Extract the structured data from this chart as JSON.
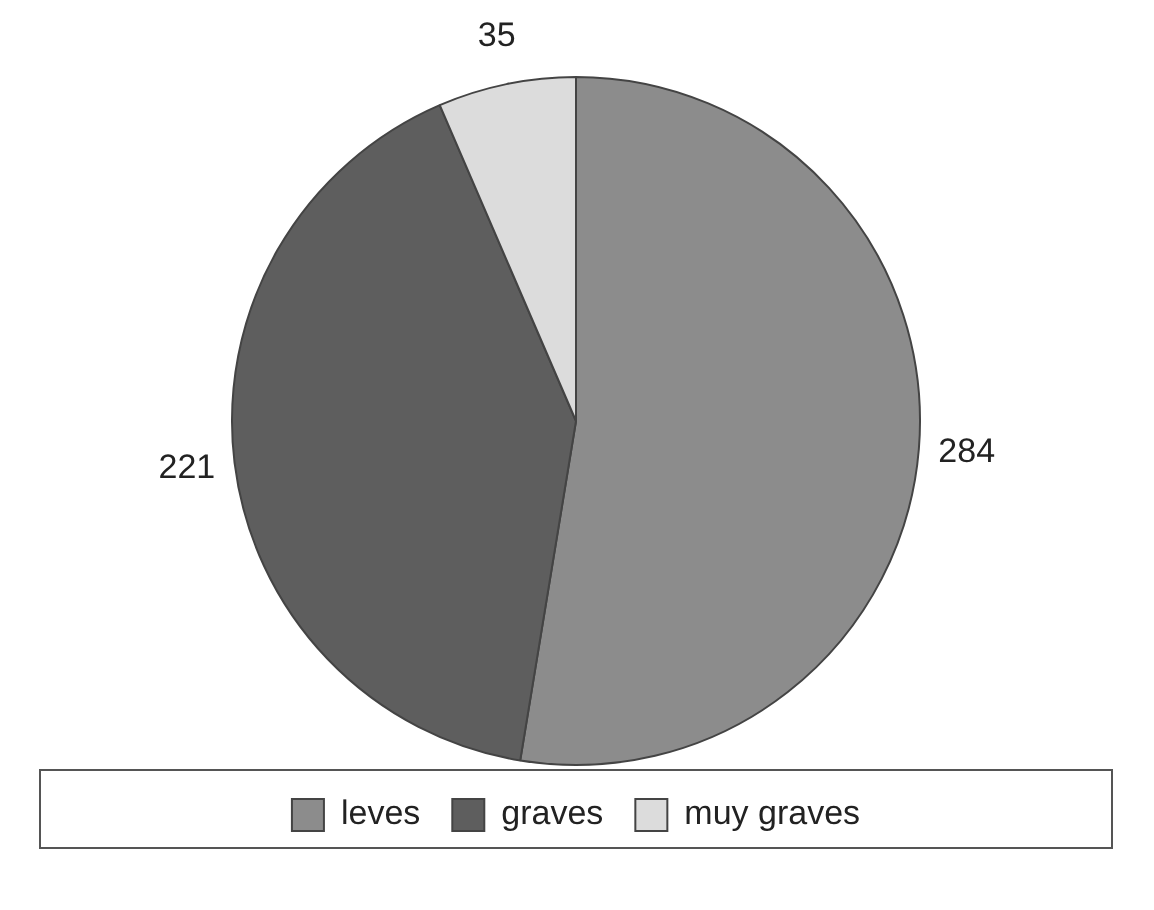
{
  "chart_data": {
    "type": "pie",
    "categories": [
      "leves",
      "graves",
      "muy graves"
    ],
    "values": [
      284,
      221,
      35
    ],
    "colors": [
      "#8c8c8c",
      "#5e5e5e",
      "#dcdcdc"
    ],
    "data_labels": true,
    "legend": "bottom"
  }
}
